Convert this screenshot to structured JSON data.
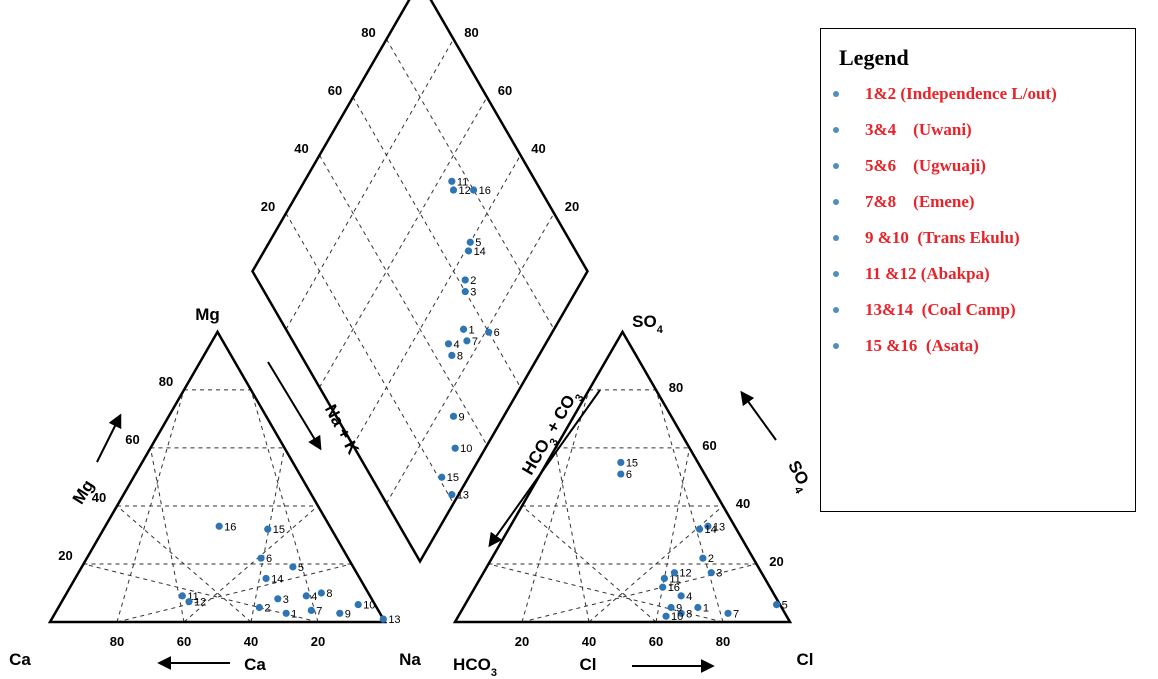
{
  "legend": {
    "title": "Legend",
    "items": [
      {
        "label": "1&2 (Independence L/out)"
      },
      {
        "label": "3&4    (Uwani)"
      },
      {
        "label": "5&6    (Ugwuaji)"
      },
      {
        "label": "7&8    (Emene)"
      },
      {
        "label": "9 &10  (Trans Ekulu)"
      },
      {
        "label": "11 &12 (Abakpa)"
      },
      {
        "label": "13&14  (Coal Camp)"
      },
      {
        "label": "15 &16  (Asata)"
      }
    ],
    "label_color": "#e8232a",
    "dot_color": "#4f8fc0"
  },
  "chart_data": {
    "type": "scatter",
    "subtype": "piper-diagram",
    "title": "",
    "point_color": "#2e75b6",
    "cation_triangle": {
      "corner_labels": {
        "left": "Ca",
        "top": "Mg",
        "right": "Na"
      },
      "axis_labels": {
        "mg": "Mg",
        "ca": "Ca",
        "na_k": "Na + K"
      },
      "ticks_left": [
        "20",
        "40",
        "60",
        "80"
      ],
      "ticks_bottom": [
        "80",
        "60",
        "40",
        "20"
      ],
      "points": [
        {
          "id": "1",
          "ca": 28,
          "mg": 3
        },
        {
          "id": "2",
          "ca": 35,
          "mg": 5
        },
        {
          "id": "3",
          "ca": 28,
          "mg": 8
        },
        {
          "id": "4",
          "ca": 19,
          "mg": 9
        },
        {
          "id": "5",
          "ca": 18,
          "mg": 19
        },
        {
          "id": "6",
          "ca": 26,
          "mg": 22
        },
        {
          "id": "7",
          "ca": 20,
          "mg": 4
        },
        {
          "id": "8",
          "ca": 14,
          "mg": 10
        },
        {
          "id": "9",
          "ca": 12,
          "mg": 3
        },
        {
          "id": "10",
          "ca": 5,
          "mg": 6
        },
        {
          "id": "11",
          "ca": 56,
          "mg": 9
        },
        {
          "id": "12",
          "ca": 55,
          "mg": 7
        },
        {
          "id": "13",
          "ca": 0,
          "mg": 1
        },
        {
          "id": "14",
          "ca": 28,
          "mg": 15
        },
        {
          "id": "15",
          "ca": 19,
          "mg": 32
        },
        {
          "id": "16",
          "ca": 33,
          "mg": 33
        }
      ]
    },
    "anion_triangle": {
      "corner_labels": {
        "left": "HCO3",
        "top": "SO4",
        "right": "Cl"
      },
      "axis_labels": {
        "so4": "SO4",
        "cl": "Cl",
        "hco3_co3": "HCO3 + CO3"
      },
      "ticks_bottom": [
        "20",
        "40",
        "60",
        "80"
      ],
      "ticks_right": [
        "20",
        "40",
        "60",
        "80"
      ],
      "points": [
        {
          "id": "1",
          "cl": 70,
          "so4": 5
        },
        {
          "id": "2",
          "cl": 63,
          "so4": 22
        },
        {
          "id": "3",
          "cl": 68,
          "so4": 17
        },
        {
          "id": "4",
          "cl": 63,
          "so4": 9
        },
        {
          "id": "5",
          "cl": 93,
          "so4": 6
        },
        {
          "id": "6",
          "cl": 24,
          "so4": 51
        },
        {
          "id": "7",
          "cl": 80,
          "so4": 3
        },
        {
          "id": "8",
          "cl": 66,
          "so4": 3
        },
        {
          "id": "9",
          "cl": 62,
          "so4": 5
        },
        {
          "id": "10",
          "cl": 62,
          "so4": 2
        },
        {
          "id": "11",
          "cl": 55,
          "so4": 15
        },
        {
          "id": "12",
          "cl": 57,
          "so4": 17
        },
        {
          "id": "13",
          "cl": 59,
          "so4": 33
        },
        {
          "id": "14",
          "cl": 57,
          "so4": 32
        },
        {
          "id": "15",
          "cl": 22,
          "so4": 55
        },
        {
          "id": "16",
          "cl": 56,
          "so4": 12
        }
      ]
    },
    "diamond": {
      "ticks_left": [
        "20",
        "40",
        "60",
        "80"
      ],
      "ticks_right": [
        "80",
        "60",
        "40",
        "20"
      ],
      "points": [
        {
          "id": "1",
          "na_k": 73,
          "so4_cl": 53
        },
        {
          "id": "2",
          "na_k": 65,
          "so4_cl": 62
        },
        {
          "id": "3",
          "na_k": 67,
          "so4_cl": 60
        },
        {
          "id": "4",
          "na_k": 71,
          "so4_cl": 46
        },
        {
          "id": "5",
          "na_k": 60,
          "so4_cl": 70
        },
        {
          "id": "6",
          "na_k": 81,
          "so4_cl": 60
        },
        {
          "id": "7",
          "na_k": 76,
          "so4_cl": 52
        },
        {
          "id": "8",
          "na_k": 74,
          "so4_cl": 45
        },
        {
          "id": "9",
          "na_k": 85,
          "so4_cl": 35
        },
        {
          "id": "10",
          "na_k": 91,
          "so4_cl": 30
        },
        {
          "id": "11",
          "na_k": 44,
          "so4_cl": 75
        },
        {
          "id": "12",
          "na_k": 46,
          "so4_cl": 74
        },
        {
          "id": "13",
          "na_k": 98,
          "so4_cl": 21
        },
        {
          "id": "14",
          "na_k": 61,
          "so4_cl": 68
        },
        {
          "id": "15",
          "na_k": 92,
          "so4_cl": 21
        },
        {
          "id": "16",
          "na_k": 52,
          "so4_cl": 80
        }
      ]
    }
  }
}
